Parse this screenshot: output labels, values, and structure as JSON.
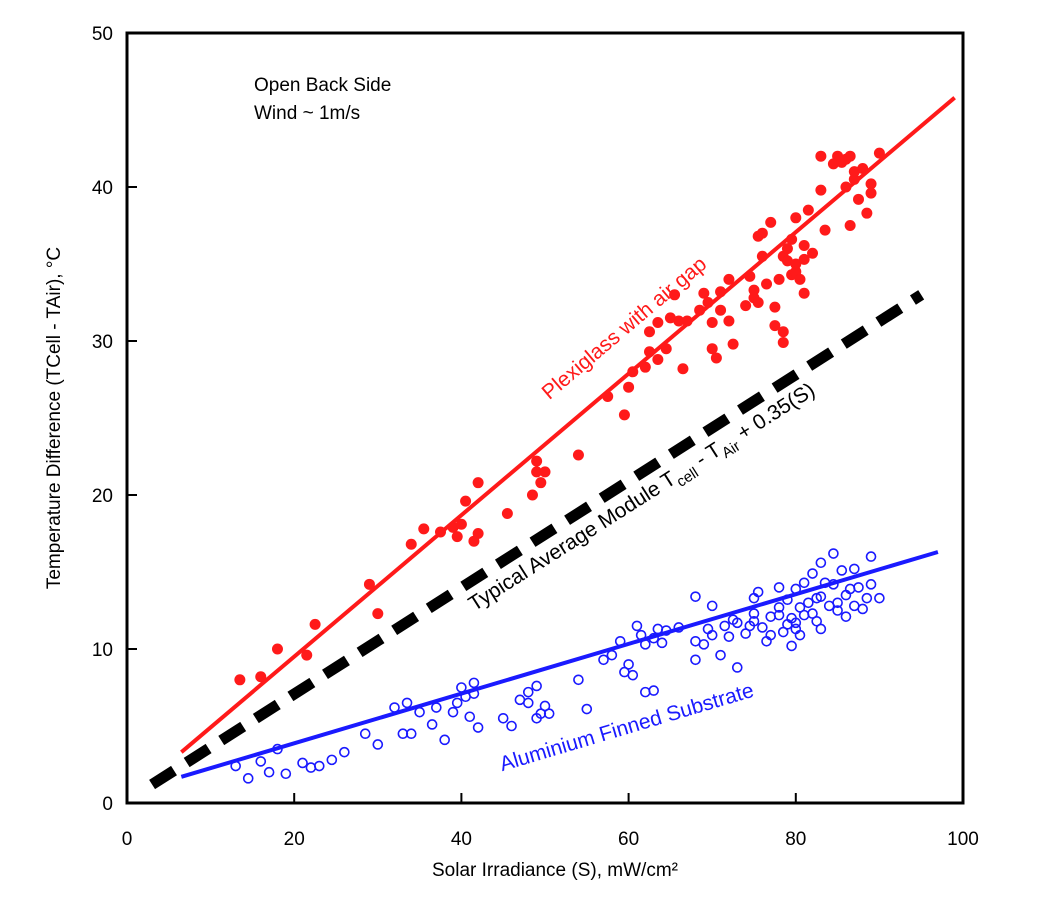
{
  "chart_data": {
    "type": "scatter",
    "xlabel": "Solar Irradiance (S), mW/cm²",
    "ylabel": "Temperature Difference (TCell - TAir), °C",
    "xlim": [
      0,
      100
    ],
    "ylim": [
      0,
      50
    ],
    "x_ticks": [
      "0",
      "20",
      "40",
      "60",
      "80",
      "100"
    ],
    "y_ticks": [
      "0",
      "10",
      "20",
      "30",
      "40",
      "50"
    ],
    "grid": false,
    "notes": [
      "Open Back Side",
      "Wind ~ 1m/s"
    ],
    "series": [
      {
        "name": "Plexiglass with air gap",
        "color": "#ff1a1a",
        "marker": "filled-circle",
        "fit": [
          [
            6.5,
            3.3
          ],
          [
            99,
            45.8
          ]
        ],
        "label_at": [
          60,
          30.5
        ],
        "points": [
          [
            13.5,
            8.0
          ],
          [
            16,
            8.2
          ],
          [
            18,
            10.0
          ],
          [
            21.5,
            9.6
          ],
          [
            22.5,
            11.6
          ],
          [
            29,
            14.2
          ],
          [
            30,
            12.3
          ],
          [
            34,
            16.8
          ],
          [
            35.5,
            17.8
          ],
          [
            37.5,
            17.6
          ],
          [
            39,
            17.9
          ],
          [
            39.5,
            17.3
          ],
          [
            40,
            18.1
          ],
          [
            40.5,
            19.6
          ],
          [
            41.5,
            17.0
          ],
          [
            42,
            17.5
          ],
          [
            42,
            20.8
          ],
          [
            45.5,
            18.8
          ],
          [
            48.5,
            20.0
          ],
          [
            49,
            21.5
          ],
          [
            49,
            22.2
          ],
          [
            49.5,
            20.8
          ],
          [
            50,
            21.5
          ],
          [
            54,
            22.6
          ],
          [
            57.5,
            26.4
          ],
          [
            59.5,
            25.2
          ],
          [
            60,
            27.0
          ],
          [
            60.5,
            28.0
          ],
          [
            62,
            28.3
          ],
          [
            62.5,
            29.3
          ],
          [
            62.5,
            30.6
          ],
          [
            63.5,
            31.2
          ],
          [
            63.5,
            28.8
          ],
          [
            64.5,
            29.5
          ],
          [
            65,
            31.5
          ],
          [
            65.5,
            33.0
          ],
          [
            66,
            31.3
          ],
          [
            66.5,
            28.2
          ],
          [
            67,
            31.3
          ],
          [
            68.5,
            32.0
          ],
          [
            69,
            33.1
          ],
          [
            69.5,
            32.5
          ],
          [
            70,
            29.5
          ],
          [
            70,
            31.2
          ],
          [
            70.5,
            28.9
          ],
          [
            71,
            33.2
          ],
          [
            71,
            32.0
          ],
          [
            72,
            31.3
          ],
          [
            72,
            34.0
          ],
          [
            72.5,
            29.8
          ],
          [
            74,
            32.3
          ],
          [
            74.5,
            34.2
          ],
          [
            75,
            33.3
          ],
          [
            75,
            32.8
          ],
          [
            75.5,
            32.5
          ],
          [
            75.5,
            36.8
          ],
          [
            76,
            35.5
          ],
          [
            76,
            37.0
          ],
          [
            76.5,
            33.7
          ],
          [
            77,
            37.7
          ],
          [
            77.5,
            32.2
          ],
          [
            77.5,
            31.0
          ],
          [
            78,
            34.0
          ],
          [
            78.5,
            35.5
          ],
          [
            78.5,
            30.6
          ],
          [
            78.5,
            29.9
          ],
          [
            79,
            36.0
          ],
          [
            79,
            35.2
          ],
          [
            79.5,
            34.3
          ],
          [
            79.5,
            36.6
          ],
          [
            80,
            35.0
          ],
          [
            80,
            38.0
          ],
          [
            80,
            34.5
          ],
          [
            80.5,
            34.0
          ],
          [
            81,
            35.3
          ],
          [
            81,
            33.1
          ],
          [
            81,
            36.2
          ],
          [
            81.5,
            38.5
          ],
          [
            82,
            35.7
          ],
          [
            83,
            42.0
          ],
          [
            83,
            39.8
          ],
          [
            83.5,
            37.2
          ],
          [
            84.5,
            41.5
          ],
          [
            85,
            42.0
          ],
          [
            85.5,
            41.6
          ],
          [
            86,
            40.0
          ],
          [
            86,
            41.8
          ],
          [
            86.5,
            42.0
          ],
          [
            86.5,
            37.5
          ],
          [
            87,
            40.5
          ],
          [
            87,
            41.0
          ],
          [
            87.5,
            39.2
          ],
          [
            88,
            41.2
          ],
          [
            88.5,
            38.3
          ],
          [
            89,
            40.2
          ],
          [
            89,
            39.6
          ],
          [
            90,
            42.2
          ]
        ]
      },
      {
        "name": "Aluminium Finned Substrate",
        "color": "#1a1aff",
        "marker": "open-circle",
        "fit": [
          [
            6.5,
            1.7
          ],
          [
            97,
            16.3
          ]
        ],
        "label_at": [
          60,
          4.5
        ],
        "points": [
          [
            13,
            2.4
          ],
          [
            14.5,
            1.6
          ],
          [
            16,
            2.7
          ],
          [
            17,
            2.0
          ],
          [
            18,
            3.5
          ],
          [
            19,
            1.9
          ],
          [
            21,
            2.6
          ],
          [
            22,
            2.3
          ],
          [
            23,
            2.4
          ],
          [
            24.5,
            2.8
          ],
          [
            26,
            3.3
          ],
          [
            28.5,
            4.5
          ],
          [
            30,
            3.8
          ],
          [
            32,
            6.2
          ],
          [
            33,
            4.5
          ],
          [
            33.5,
            6.5
          ],
          [
            34,
            4.5
          ],
          [
            35,
            5.9
          ],
          [
            36.5,
            5.1
          ],
          [
            37,
            6.2
          ],
          [
            38,
            4.1
          ],
          [
            39,
            5.9
          ],
          [
            39.5,
            6.5
          ],
          [
            40,
            7.5
          ],
          [
            40.5,
            6.9
          ],
          [
            41,
            5.6
          ],
          [
            41.5,
            7.8
          ],
          [
            41.5,
            7.1
          ],
          [
            42,
            4.9
          ],
          [
            45,
            5.5
          ],
          [
            46,
            5.0
          ],
          [
            47,
            6.7
          ],
          [
            48,
            6.5
          ],
          [
            48,
            7.2
          ],
          [
            49,
            5.5
          ],
          [
            49,
            7.6
          ],
          [
            49.5,
            5.8
          ],
          [
            50,
            6.3
          ],
          [
            50.5,
            5.8
          ],
          [
            54,
            8.0
          ],
          [
            55,
            6.1
          ],
          [
            57,
            9.3
          ],
          [
            58,
            9.6
          ],
          [
            59,
            10.5
          ],
          [
            59.5,
            8.5
          ],
          [
            60,
            9.0
          ],
          [
            60.5,
            8.3
          ],
          [
            61,
            11.5
          ],
          [
            61.5,
            10.9
          ],
          [
            62,
            10.3
          ],
          [
            62,
            7.2
          ],
          [
            63,
            10.7
          ],
          [
            63,
            7.3
          ],
          [
            63.5,
            11.3
          ],
          [
            64,
            10.4
          ],
          [
            64.5,
            11.2
          ],
          [
            66,
            11.4
          ],
          [
            68,
            13.4
          ],
          [
            68,
            10.5
          ],
          [
            68,
            9.3
          ],
          [
            69,
            10.3
          ],
          [
            69.5,
            11.3
          ],
          [
            70,
            10.9
          ],
          [
            70,
            12.8
          ],
          [
            71,
            9.6
          ],
          [
            71.5,
            11.5
          ],
          [
            72,
            10.8
          ],
          [
            72.5,
            11.9
          ],
          [
            73,
            11.7
          ],
          [
            73,
            8.8
          ],
          [
            74,
            11.0
          ],
          [
            74.5,
            11.5
          ],
          [
            75,
            12.3
          ],
          [
            75,
            13.3
          ],
          [
            75,
            11.8
          ],
          [
            75.5,
            13.7
          ],
          [
            76,
            11.4
          ],
          [
            76.5,
            10.5
          ],
          [
            77,
            12.1
          ],
          [
            77,
            10.9
          ],
          [
            78,
            12.7
          ],
          [
            78,
            12.2
          ],
          [
            78,
            14.0
          ],
          [
            78.5,
            11.1
          ],
          [
            79,
            13.2
          ],
          [
            79,
            11.6
          ],
          [
            79.5,
            12.0
          ],
          [
            79.5,
            10.2
          ],
          [
            80,
            11.7
          ],
          [
            80,
            13.9
          ],
          [
            80,
            11.3
          ],
          [
            80.5,
            12.7
          ],
          [
            80.5,
            10.9
          ],
          [
            81,
            12.2
          ],
          [
            81,
            14.3
          ],
          [
            81.5,
            13.0
          ],
          [
            82,
            12.3
          ],
          [
            82,
            14.9
          ],
          [
            82.5,
            13.3
          ],
          [
            82.5,
            11.8
          ],
          [
            83,
            15.6
          ],
          [
            83,
            13.4
          ],
          [
            83,
            11.3
          ],
          [
            83.5,
            14.3
          ],
          [
            84,
            12.8
          ],
          [
            84.5,
            16.2
          ],
          [
            84.5,
            14.2
          ],
          [
            85,
            13.0
          ],
          [
            85,
            12.5
          ],
          [
            85.5,
            15.1
          ],
          [
            86,
            13.5
          ],
          [
            86,
            12.1
          ],
          [
            86.5,
            13.9
          ],
          [
            87,
            15.2
          ],
          [
            87,
            12.8
          ],
          [
            87.5,
            14.0
          ],
          [
            88,
            12.6
          ],
          [
            88.5,
            13.3
          ],
          [
            89,
            16.0
          ],
          [
            89,
            14.2
          ],
          [
            90,
            13.3
          ]
        ]
      },
      {
        "name": "Typical Average Module T",
        "color": "#000000",
        "marker": "none",
        "line_style": "dashed",
        "fit": [
          [
            3,
            1.2
          ],
          [
            95,
            33.0
          ]
        ],
        "label_at": [
          62,
          19.5
        ],
        "label_parts": [
          "Typical Average Module T",
          "cell",
          " - T",
          "Air",
          " + 0.35(S)"
        ]
      }
    ]
  }
}
